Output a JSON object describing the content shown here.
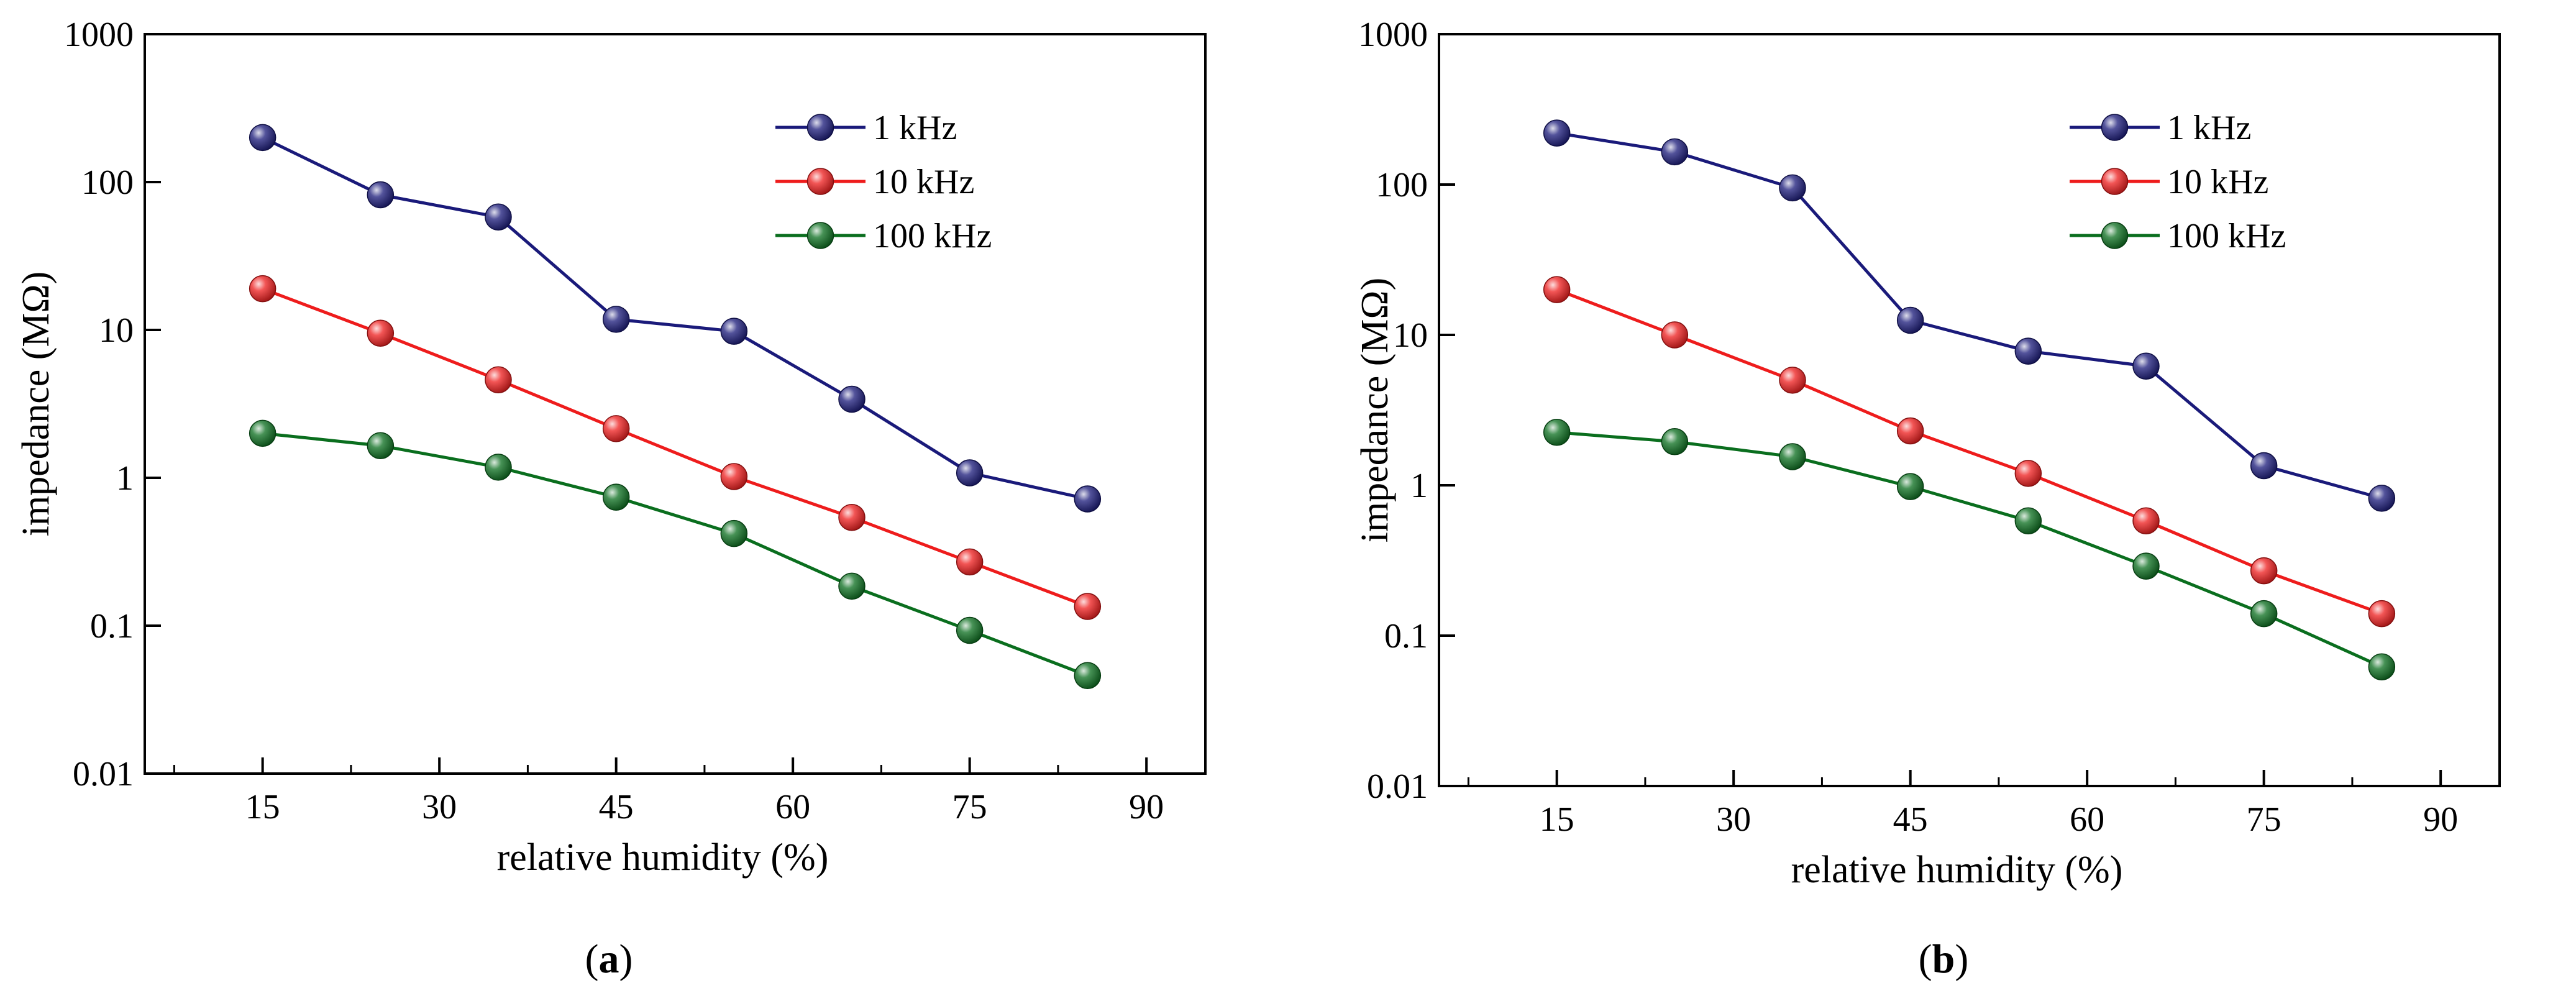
{
  "chart_data": [
    {
      "type": "line",
      "panel": "a",
      "caption": "(a)",
      "xlabel": "relative humidity (%)",
      "ylabel": "impedance (MΩ)",
      "x_scale": "linear",
      "y_scale": "log",
      "xlim": [
        5,
        95
      ],
      "ylim": [
        0.01,
        1000
      ],
      "x_ticks": [
        15,
        30,
        45,
        60,
        75,
        90
      ],
      "y_ticks": [
        0.01,
        0.1,
        1,
        10,
        100,
        1000
      ],
      "y_tick_labels": [
        "0.01",
        "0.1",
        "1",
        "10",
        "100",
        "1000"
      ],
      "grid": false,
      "legend_position": "top-right",
      "x": [
        15,
        25,
        35,
        45,
        55,
        65,
        75,
        85
      ],
      "series": [
        {
          "name": "1 kHz",
          "color": "#1a1a7a",
          "values": [
            200,
            82,
            58,
            11.8,
            9.8,
            3.4,
            1.08,
            0.72
          ]
        },
        {
          "name": "10 kHz",
          "color": "#ee1c1c",
          "values": [
            19,
            9.5,
            4.6,
            2.15,
            1.02,
            0.54,
            0.27,
            0.135
          ]
        },
        {
          "name": "100 kHz",
          "color": "#0a6e1e",
          "values": [
            2.0,
            1.65,
            1.18,
            0.74,
            0.42,
            0.185,
            0.093,
            0.046
          ]
        }
      ]
    },
    {
      "type": "line",
      "panel": "b",
      "caption": "(b)",
      "xlabel": "relative humidity (%)",
      "ylabel": "impedance (MΩ)",
      "x_scale": "linear",
      "y_scale": "log",
      "xlim": [
        5,
        95
      ],
      "ylim": [
        0.01,
        1000
      ],
      "x_ticks": [
        15,
        30,
        45,
        60,
        75,
        90
      ],
      "y_ticks": [
        0.01,
        0.1,
        1,
        10,
        100,
        1000
      ],
      "y_tick_labels": [
        "0.01",
        "0.1",
        "1",
        "10",
        "100",
        "1000"
      ],
      "grid": false,
      "legend_position": "top-right",
      "x": [
        15,
        25,
        35,
        45,
        55,
        65,
        75,
        85
      ],
      "series": [
        {
          "name": "1 kHz",
          "color": "#1a1a7a",
          "values": [
            220,
            165,
            95,
            12.5,
            7.8,
            6.2,
            1.35,
            0.82
          ]
        },
        {
          "name": "10 kHz",
          "color": "#ee1c1c",
          "values": [
            20,
            10,
            5.0,
            2.3,
            1.2,
            0.58,
            0.27,
            0.14
          ]
        },
        {
          "name": "100 kHz",
          "color": "#0a6e1e",
          "values": [
            2.25,
            1.95,
            1.55,
            0.98,
            0.58,
            0.29,
            0.14,
            0.062
          ]
        }
      ]
    }
  ]
}
